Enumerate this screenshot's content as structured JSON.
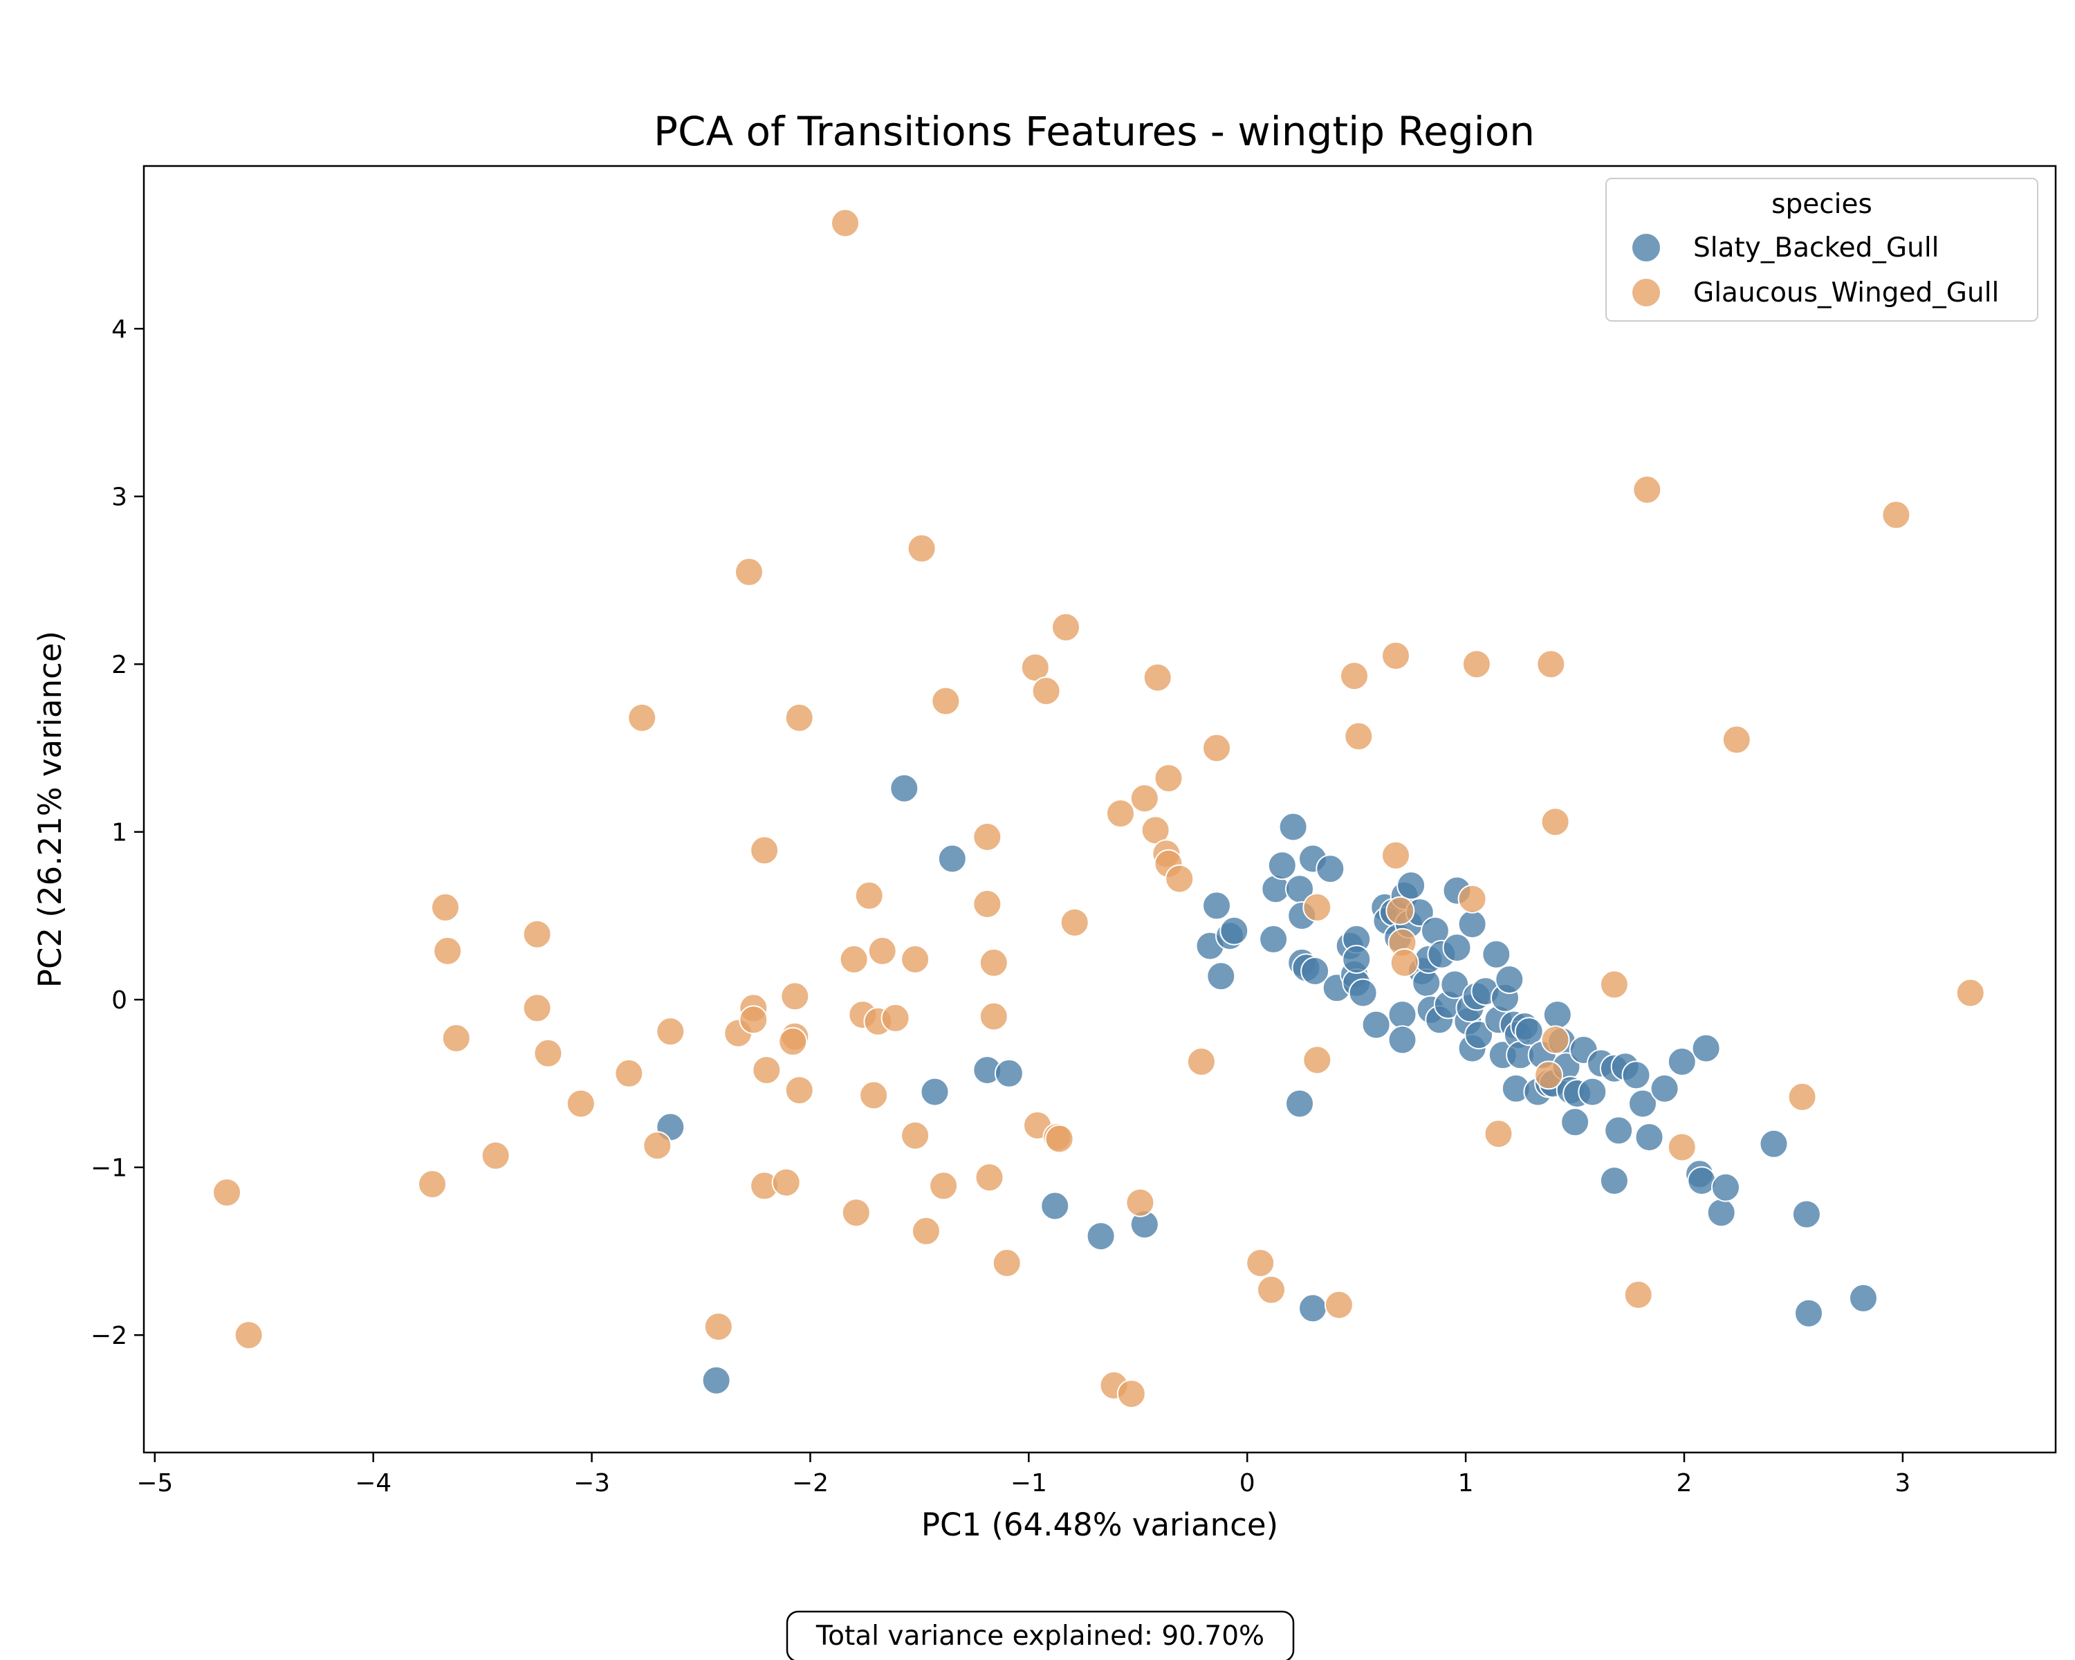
{
  "chart_data": {
    "type": "scatter",
    "title": "PCA of Transitions Features - wingtip Region",
    "xlabel": "PC1 (64.48% variance)",
    "ylabel": "PC2 (26.21% variance)",
    "xlim": [
      -5.05,
      3.7
    ],
    "ylim": [
      -2.7,
      4.97
    ],
    "xticks": [
      -5,
      -4,
      -3,
      -2,
      -1,
      0,
      1,
      2,
      3
    ],
    "xtick_labels": [
      "−5",
      "−4",
      "−3",
      "−2",
      "−1",
      "0",
      "1",
      "2",
      "3"
    ],
    "yticks": [
      -2,
      -1,
      0,
      1,
      2,
      3,
      4
    ],
    "ytick_labels": [
      "−2",
      "−1",
      "0",
      "1",
      "2",
      "3",
      "4"
    ],
    "grid": false,
    "legend": {
      "title": "species",
      "placement": "top-right"
    },
    "annotation": "Total variance explained: 90.70%",
    "series": [
      {
        "name": "Slaty_Backed_Gull",
        "color": "#4a7ea8",
        "points": [
          [
            -1.57,
            1.26
          ],
          [
            -1.35,
            0.84
          ],
          [
            -1.43,
            -0.55
          ],
          [
            -1.19,
            -0.42
          ],
          [
            -1.09,
            -0.44
          ],
          [
            -2.64,
            -0.76
          ],
          [
            -2.43,
            -2.27
          ],
          [
            -0.88,
            -1.23
          ],
          [
            -0.67,
            -1.41
          ],
          [
            -0.47,
            -1.34
          ],
          [
            0.3,
            -1.84
          ],
          [
            0.24,
            -0.62
          ],
          [
            -0.17,
            0.32
          ],
          [
            -0.14,
            0.56
          ],
          [
            -0.12,
            0.14
          ],
          [
            -0.08,
            0.38
          ],
          [
            -0.06,
            0.41
          ],
          [
            0.12,
            0.36
          ],
          [
            0.13,
            0.66
          ],
          [
            0.16,
            0.8
          ],
          [
            0.21,
            1.03
          ],
          [
            0.24,
            0.66
          ],
          [
            0.25,
            0.5
          ],
          [
            0.25,
            0.22
          ],
          [
            0.27,
            0.19
          ],
          [
            0.3,
            0.84
          ],
          [
            0.31,
            0.17
          ],
          [
            0.38,
            0.78
          ],
          [
            0.41,
            0.07
          ],
          [
            0.47,
            0.32
          ],
          [
            0.5,
            0.36
          ],
          [
            0.49,
            0.15
          ],
          [
            0.5,
            0.1
          ],
          [
            0.5,
            0.24
          ],
          [
            0.53,
            0.04
          ],
          [
            0.59,
            -0.15
          ],
          [
            0.63,
            0.55
          ],
          [
            0.64,
            0.47
          ],
          [
            0.67,
            0.52
          ],
          [
            0.69,
            0.37
          ],
          [
            0.71,
            -0.09
          ],
          [
            0.71,
            -0.24
          ],
          [
            0.72,
            0.62
          ],
          [
            0.74,
            0.45
          ],
          [
            0.75,
            0.68
          ],
          [
            0.79,
            0.52
          ],
          [
            0.8,
            0.17
          ],
          [
            0.82,
            0.1
          ],
          [
            0.83,
            0.24
          ],
          [
            0.84,
            -0.06
          ],
          [
            0.86,
            0.41
          ],
          [
            0.88,
            -0.12
          ],
          [
            0.89,
            0.27
          ],
          [
            0.92,
            -0.03
          ],
          [
            0.95,
            0.09
          ],
          [
            0.96,
            0.31
          ],
          [
            0.96,
            0.65
          ],
          [
            1.01,
            -0.13
          ],
          [
            1.02,
            -0.05
          ],
          [
            1.03,
            0.45
          ],
          [
            1.03,
            -0.29
          ],
          [
            1.05,
            0.02
          ],
          [
            1.06,
            -0.21
          ],
          [
            1.09,
            0.05
          ],
          [
            1.14,
            0.27
          ],
          [
            1.15,
            -0.12
          ],
          [
            1.17,
            -0.33
          ],
          [
            1.18,
            0.01
          ],
          [
            1.2,
            0.12
          ],
          [
            1.22,
            -0.15
          ],
          [
            1.23,
            -0.53
          ],
          [
            1.24,
            -0.21
          ],
          [
            1.25,
            -0.33
          ],
          [
            1.27,
            -0.16
          ],
          [
            1.29,
            -0.19
          ],
          [
            1.33,
            -0.55
          ],
          [
            1.35,
            -0.33
          ],
          [
            1.38,
            -0.5
          ],
          [
            1.4,
            -0.5
          ],
          [
            1.42,
            -0.09
          ],
          [
            1.44,
            -0.25
          ],
          [
            1.46,
            -0.4
          ],
          [
            1.48,
            -0.54
          ],
          [
            1.51,
            -0.56
          ],
          [
            1.5,
            -0.73
          ],
          [
            1.54,
            -0.3
          ],
          [
            1.58,
            -0.55
          ],
          [
            1.62,
            -0.38
          ],
          [
            1.68,
            -0.41
          ],
          [
            1.7,
            -0.78
          ],
          [
            1.68,
            -1.08
          ],
          [
            1.73,
            -0.4
          ],
          [
            1.78,
            -0.45
          ],
          [
            1.81,
            -0.62
          ],
          [
            1.84,
            -0.82
          ],
          [
            1.91,
            -0.53
          ],
          [
            1.99,
            -0.37
          ],
          [
            2.07,
            -1.04
          ],
          [
            2.08,
            -1.08
          ],
          [
            2.1,
            -0.29
          ],
          [
            2.17,
            -1.27
          ],
          [
            2.19,
            -1.12
          ],
          [
            2.41,
            -0.86
          ],
          [
            2.56,
            -1.28
          ],
          [
            2.57,
            -1.87
          ],
          [
            2.82,
            -1.78
          ]
        ]
      },
      {
        "name": "Glaucous_Winged_Gull",
        "color": "#e6a064",
        "points": [
          [
            -1.84,
            4.63
          ],
          [
            -2.28,
            2.55
          ],
          [
            -1.49,
            2.69
          ],
          [
            -2.77,
            1.68
          ],
          [
            -2.05,
            1.68
          ],
          [
            -1.38,
            1.78
          ],
          [
            -0.97,
            1.98
          ],
          [
            -0.92,
            1.84
          ],
          [
            -0.83,
            2.22
          ],
          [
            -0.41,
            1.92
          ],
          [
            -2.21,
            0.89
          ],
          [
            -1.19,
            0.97
          ],
          [
            -0.58,
            1.11
          ],
          [
            -0.47,
            1.2
          ],
          [
            -0.36,
            1.32
          ],
          [
            -0.42,
            1.01
          ],
          [
            -0.37,
            0.87
          ],
          [
            -0.36,
            0.81
          ],
          [
            -0.31,
            0.72
          ],
          [
            -0.14,
            1.5
          ],
          [
            -3.67,
            0.55
          ],
          [
            -3.66,
            0.29
          ],
          [
            -3.25,
            0.39
          ],
          [
            -1.73,
            0.62
          ],
          [
            -1.19,
            0.57
          ],
          [
            -0.79,
            0.46
          ],
          [
            -1.8,
            0.24
          ],
          [
            -1.67,
            0.29
          ],
          [
            -1.52,
            0.24
          ],
          [
            -1.16,
            0.22
          ],
          [
            -3.25,
            -0.05
          ],
          [
            -3.62,
            -0.23
          ],
          [
            -3.2,
            -0.32
          ],
          [
            -3.05,
            -0.62
          ],
          [
            -2.83,
            -0.44
          ],
          [
            -2.64,
            -0.19
          ],
          [
            -2.33,
            -0.2
          ],
          [
            -2.26,
            -0.05
          ],
          [
            -2.26,
            -0.12
          ],
          [
            -2.07,
            0.02
          ],
          [
            -2.07,
            -0.22
          ],
          [
            -2.08,
            -0.25
          ],
          [
            -2.2,
            -0.42
          ],
          [
            -2.05,
            -0.54
          ],
          [
            -1.76,
            -0.09
          ],
          [
            -1.69,
            -0.13
          ],
          [
            -1.61,
            -0.11
          ],
          [
            -1.16,
            -0.1
          ],
          [
            -1.71,
            -0.57
          ],
          [
            -1.52,
            -0.81
          ],
          [
            -2.7,
            -0.87
          ],
          [
            -2.21,
            -1.11
          ],
          [
            -2.11,
            -1.09
          ],
          [
            -1.39,
            -1.11
          ],
          [
            -1.18,
            -1.06
          ],
          [
            -0.96,
            -0.75
          ],
          [
            -0.87,
            -0.82
          ],
          [
            -0.86,
            -0.83
          ],
          [
            -1.79,
            -1.27
          ],
          [
            -1.47,
            -1.38
          ],
          [
            -1.1,
            -1.57
          ],
          [
            -0.49,
            -1.21
          ],
          [
            -3.44,
            -0.93
          ],
          [
            -3.73,
            -1.1
          ],
          [
            -4.67,
            -1.15
          ],
          [
            -4.57,
            -2.0
          ],
          [
            -2.42,
            -1.95
          ],
          [
            -0.61,
            -2.3
          ],
          [
            -0.53,
            -2.35
          ],
          [
            -0.21,
            -0.37
          ],
          [
            0.06,
            -1.57
          ],
          [
            0.11,
            -1.73
          ],
          [
            0.42,
            -1.82
          ],
          [
            0.32,
            -0.36
          ],
          [
            0.32,
            0.55
          ],
          [
            0.49,
            1.93
          ],
          [
            0.51,
            1.57
          ],
          [
            0.68,
            2.05
          ],
          [
            1.05,
            2.0
          ],
          [
            1.39,
            2.0
          ],
          [
            1.41,
            1.06
          ],
          [
            0.68,
            0.86
          ],
          [
            1.03,
            0.6
          ],
          [
            0.7,
            0.53
          ],
          [
            0.71,
            0.34
          ],
          [
            0.72,
            0.22
          ],
          [
            1.15,
            -0.8
          ],
          [
            1.38,
            -0.45
          ],
          [
            1.41,
            -0.24
          ],
          [
            1.68,
            0.09
          ],
          [
            1.79,
            -1.76
          ],
          [
            1.83,
            3.04
          ],
          [
            1.99,
            -0.88
          ],
          [
            2.24,
            1.55
          ],
          [
            2.54,
            -0.58
          ],
          [
            2.97,
            2.89
          ],
          [
            3.31,
            0.04
          ]
        ]
      }
    ]
  }
}
